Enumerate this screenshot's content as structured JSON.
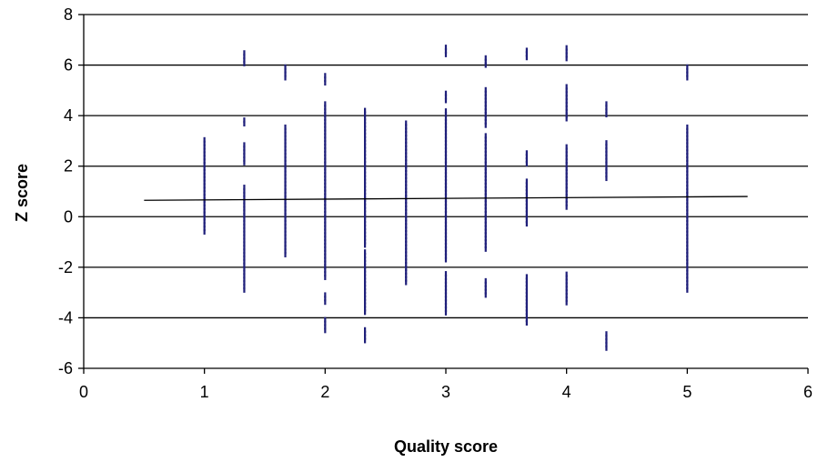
{
  "chart_data": {
    "type": "scatter",
    "title": "",
    "xlabel": "Quality score",
    "ylabel": "Z score",
    "xlim": [
      0,
      6
    ],
    "ylim": [
      -6,
      8
    ],
    "x_ticks": [
      0,
      1,
      2,
      3,
      4,
      5,
      6
    ],
    "y_ticks": [
      -6,
      -4,
      -2,
      0,
      2,
      4,
      6,
      8
    ],
    "grid": "horizontal",
    "legend": "none",
    "marker": "dash",
    "colors": {
      "points": "#1f1f7a",
      "trendline": "#000000",
      "grid": "#000000"
    },
    "x_values": [
      1,
      1.33,
      1.67,
      2,
      2.33,
      2.67,
      3,
      3.33,
      3.67,
      4,
      4.33,
      5
    ],
    "y_ranges": [
      [
        -0.6,
        3.1
      ],
      [
        -2.9,
        6.5
      ],
      [
        -1.5,
        6.0
      ],
      [
        -4.5,
        5.6
      ],
      [
        -4.9,
        4.3
      ],
      [
        -2.6,
        3.7
      ],
      [
        -3.8,
        6.7
      ],
      [
        -3.1,
        6.4
      ],
      [
        -4.2,
        6.6
      ],
      [
        -3.4,
        6.8
      ],
      [
        -5.2,
        4.5
      ],
      [
        -2.9,
        6.0
      ]
    ],
    "gaps": [
      [],
      [
        [
          1.3,
          2.1
        ],
        [
          2.9,
          3.6
        ],
        [
          3.9,
          6.0
        ]
      ],
      [
        [
          3.6,
          5.4
        ]
      ],
      [
        [
          -2.5,
          -3.0
        ],
        [
          -3.5,
          -4.0
        ],
        [
          4.5,
          5.2
        ]
      ],
      [
        [
          -3.9,
          -4.4
        ],
        [
          -1.2,
          -1.4
        ]
      ],
      [],
      [
        [
          -1.8,
          -2.2
        ],
        [
          4.2,
          4.6
        ],
        [
          4.9,
          6.3
        ]
      ],
      [
        [
          -1.4,
          -2.4
        ],
        [
          3.3,
          3.6
        ],
        [
          5.1,
          6.0
        ]
      ],
      [
        [
          -0.3,
          -2.3
        ],
        [
          1.5,
          2.1
        ],
        [
          2.6,
          3.1
        ],
        [
          3.2,
          6.2
        ]
      ],
      [
        [
          -2.2,
          0.3
        ],
        [
          2.9,
          3.8
        ],
        [
          5.2,
          6.2
        ]
      ],
      [
        [
          -4.6,
          1.4
        ],
        [
          3.0,
          4.0
        ]
      ],
      [
        [
          3.6,
          5.5
        ]
      ]
    ],
    "trendline": {
      "x": [
        0.5,
        5.5
      ],
      "y": [
        0.65,
        0.8
      ]
    }
  }
}
